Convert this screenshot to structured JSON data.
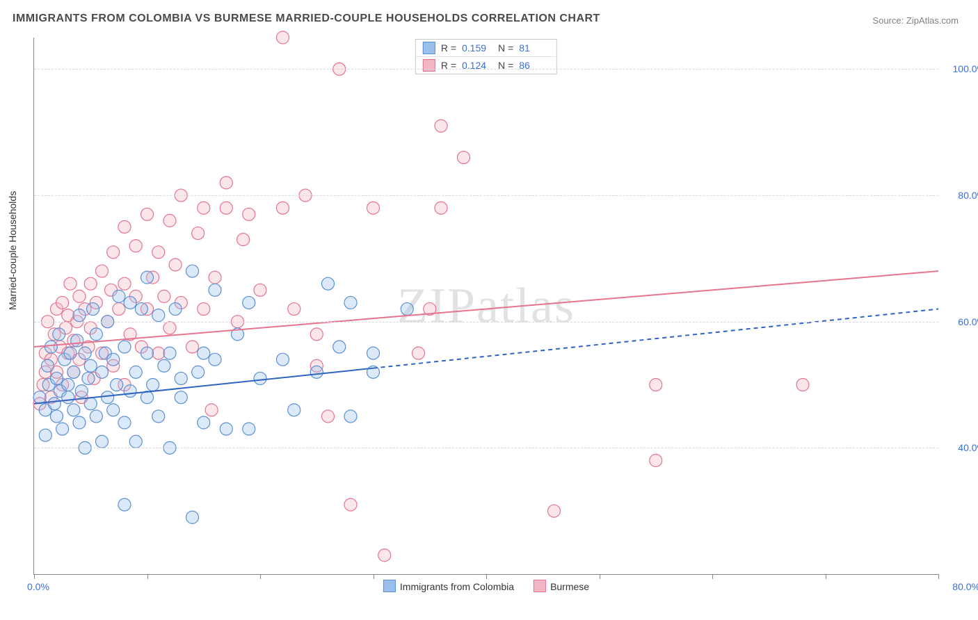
{
  "title": "IMMIGRANTS FROM COLOMBIA VS BURMESE MARRIED-COUPLE HOUSEHOLDS CORRELATION CHART",
  "source_label": "Source:",
  "source_value": "ZipAtlas.com",
  "y_axis_label": "Married-couple Households",
  "watermark": "ZIPatlas",
  "chart": {
    "type": "scatter",
    "xlim": [
      0,
      80
    ],
    "ylim": [
      20,
      105
    ],
    "x_tick_marks": [
      0,
      10,
      20,
      30,
      40,
      50,
      60,
      70,
      80
    ],
    "x_tick_labels": {
      "min": "0.0%",
      "max": "80.0%"
    },
    "y_gridlines": [
      40,
      60,
      80,
      100
    ],
    "y_tick_labels": [
      "40.0%",
      "60.0%",
      "80.0%",
      "100.0%"
    ],
    "background_color": "#ffffff",
    "grid_color": "#d7d7d7",
    "axis_color": "#888888",
    "tick_label_color": "#3a6fd8",
    "marker_radius": 9,
    "marker_fill_opacity": 0.35,
    "marker_stroke_width": 1.2,
    "line_width": 2,
    "dash_pattern": "6 5",
    "series": {
      "colombia": {
        "label": "Immigrants from Colombia",
        "color_fill": "#9bc0ec",
        "color_stroke": "#5a8fd6",
        "line_color": "#2f63c1",
        "R": "0.159",
        "N": "81",
        "trend": {
          "x1": 0,
          "y1": 47,
          "x2": 80,
          "y2": 62
        },
        "trend_solid_until_x": 30,
        "points": [
          [
            0.5,
            48
          ],
          [
            1,
            46
          ],
          [
            1,
            42
          ],
          [
            1.2,
            53
          ],
          [
            1.3,
            50
          ],
          [
            1.5,
            56
          ],
          [
            1.8,
            47
          ],
          [
            2,
            45
          ],
          [
            2,
            51
          ],
          [
            2.2,
            58
          ],
          [
            2.3,
            49
          ],
          [
            2.5,
            43
          ],
          [
            2.7,
            54
          ],
          [
            3,
            48
          ],
          [
            3,
            50
          ],
          [
            3.2,
            55
          ],
          [
            3.5,
            46
          ],
          [
            3.5,
            52
          ],
          [
            3.8,
            57
          ],
          [
            4,
            61
          ],
          [
            4,
            44
          ],
          [
            4.2,
            49
          ],
          [
            4.5,
            55
          ],
          [
            4.5,
            40
          ],
          [
            4.8,
            51
          ],
          [
            5,
            53
          ],
          [
            5,
            47
          ],
          [
            5.2,
            62
          ],
          [
            5.5,
            58
          ],
          [
            5.5,
            45
          ],
          [
            6,
            41
          ],
          [
            6,
            52
          ],
          [
            6.3,
            55
          ],
          [
            6.5,
            48
          ],
          [
            6.5,
            60
          ],
          [
            7,
            46
          ],
          [
            7,
            54
          ],
          [
            7.3,
            50
          ],
          [
            7.5,
            64
          ],
          [
            8,
            44
          ],
          [
            8,
            56
          ],
          [
            8,
            31
          ],
          [
            8.5,
            63
          ],
          [
            8.5,
            49
          ],
          [
            9,
            52
          ],
          [
            9,
            41
          ],
          [
            9.5,
            62
          ],
          [
            10,
            48
          ],
          [
            10,
            55
          ],
          [
            10,
            67
          ],
          [
            10.5,
            50
          ],
          [
            11,
            45
          ],
          [
            11,
            61
          ],
          [
            11.5,
            53
          ],
          [
            12,
            40
          ],
          [
            12,
            55
          ],
          [
            12.5,
            62
          ],
          [
            13,
            48
          ],
          [
            13,
            51
          ],
          [
            14,
            68
          ],
          [
            14,
            29
          ],
          [
            14.5,
            52
          ],
          [
            15,
            44
          ],
          [
            15,
            55
          ],
          [
            16,
            54
          ],
          [
            16,
            65
          ],
          [
            17,
            43
          ],
          [
            18,
            58
          ],
          [
            19,
            63
          ],
          [
            19,
            43
          ],
          [
            20,
            51
          ],
          [
            22,
            54
          ],
          [
            23,
            46
          ],
          [
            25,
            52
          ],
          [
            26,
            66
          ],
          [
            27,
            56
          ],
          [
            28,
            45
          ],
          [
            28,
            63
          ],
          [
            30,
            52
          ],
          [
            30,
            55
          ],
          [
            33,
            62
          ]
        ]
      },
      "burmese": {
        "label": "Burmese",
        "color_fill": "#f4b6c4",
        "color_stroke": "#e6738f",
        "line_color": "#e6738f",
        "R": "0.124",
        "N": "86",
        "trend": {
          "x1": 0,
          "y1": 56,
          "x2": 80,
          "y2": 68
        },
        "points": [
          [
            0.5,
            47
          ],
          [
            0.8,
            50
          ],
          [
            1,
            55
          ],
          [
            1,
            52
          ],
          [
            1.2,
            60
          ],
          [
            1.5,
            54
          ],
          [
            1.5,
            48
          ],
          [
            1.8,
            58
          ],
          [
            2,
            52
          ],
          [
            2,
            62
          ],
          [
            2.3,
            56
          ],
          [
            2.5,
            50
          ],
          [
            2.5,
            63
          ],
          [
            2.8,
            59
          ],
          [
            3,
            55
          ],
          [
            3,
            61
          ],
          [
            3.2,
            66
          ],
          [
            3.5,
            52
          ],
          [
            3.5,
            57
          ],
          [
            3.8,
            60
          ],
          [
            4,
            64
          ],
          [
            4,
            54
          ],
          [
            4.2,
            48
          ],
          [
            4.5,
            62
          ],
          [
            4.8,
            56
          ],
          [
            5,
            59
          ],
          [
            5,
            66
          ],
          [
            5.3,
            51
          ],
          [
            5.5,
            63
          ],
          [
            6,
            55
          ],
          [
            6,
            68
          ],
          [
            6.5,
            60
          ],
          [
            6.8,
            65
          ],
          [
            7,
            53
          ],
          [
            7,
            71
          ],
          [
            7.5,
            62
          ],
          [
            8,
            50
          ],
          [
            8,
            66
          ],
          [
            8,
            75
          ],
          [
            8.5,
            58
          ],
          [
            9,
            64
          ],
          [
            9,
            72
          ],
          [
            9.5,
            56
          ],
          [
            10,
            62
          ],
          [
            10,
            77
          ],
          [
            10.5,
            67
          ],
          [
            11,
            55
          ],
          [
            11,
            71
          ],
          [
            11.5,
            64
          ],
          [
            12,
            76
          ],
          [
            12,
            59
          ],
          [
            12.5,
            69
          ],
          [
            13,
            80
          ],
          [
            13,
            63
          ],
          [
            14,
            56
          ],
          [
            14.5,
            74
          ],
          [
            15,
            78
          ],
          [
            15,
            62
          ],
          [
            15.7,
            46
          ],
          [
            16,
            67
          ],
          [
            17,
            78
          ],
          [
            17,
            82
          ],
          [
            18,
            60
          ],
          [
            18.5,
            73
          ],
          [
            19,
            77
          ],
          [
            20,
            65
          ],
          [
            22,
            78
          ],
          [
            22,
            105
          ],
          [
            23,
            62
          ],
          [
            24,
            80
          ],
          [
            25,
            58
          ],
          [
            25,
            53
          ],
          [
            26,
            45
          ],
          [
            27,
            100
          ],
          [
            28,
            31
          ],
          [
            30,
            78
          ],
          [
            31,
            23
          ],
          [
            34,
            55
          ],
          [
            35,
            62
          ],
          [
            36,
            91
          ],
          [
            36,
            78
          ],
          [
            38,
            86
          ],
          [
            46,
            30
          ],
          [
            55,
            50
          ],
          [
            55,
            38
          ],
          [
            68,
            50
          ]
        ]
      }
    }
  },
  "legend_box": {
    "R_label": "R =",
    "N_label": "N ="
  }
}
